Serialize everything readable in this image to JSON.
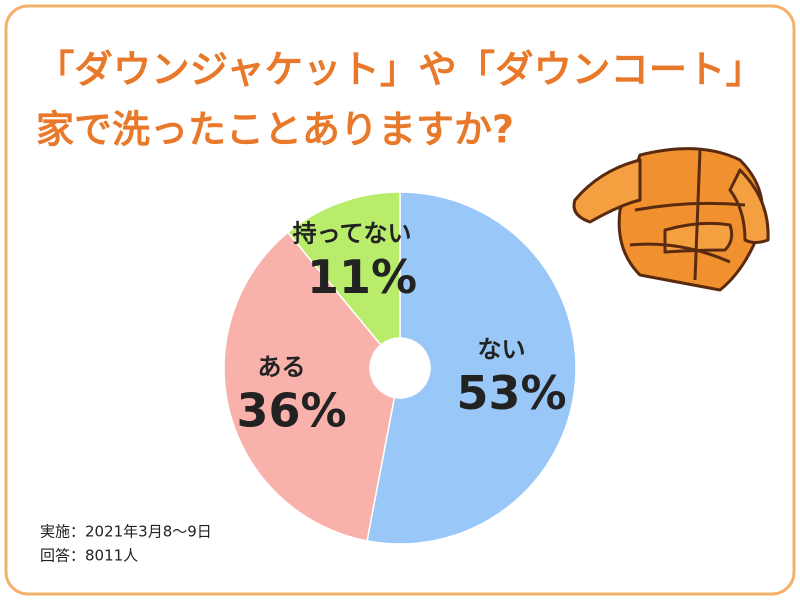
{
  "chart_data": {
    "type": "pie",
    "title": [
      "「ダウンジャケット」や「ダウンコート」",
      "家で洗ったことありますか?"
    ],
    "categories": [
      "ない",
      "ある",
      "持ってない"
    ],
    "values": [
      53,
      36,
      11
    ],
    "value_labels": [
      "53%",
      "36%",
      "11%"
    ],
    "colors": [
      "#99c8f8",
      "#f9b1ac",
      "#b8ec6a"
    ],
    "notes": [
      "実施：2021年3月8～9日",
      "回答：8011人"
    ]
  }
}
